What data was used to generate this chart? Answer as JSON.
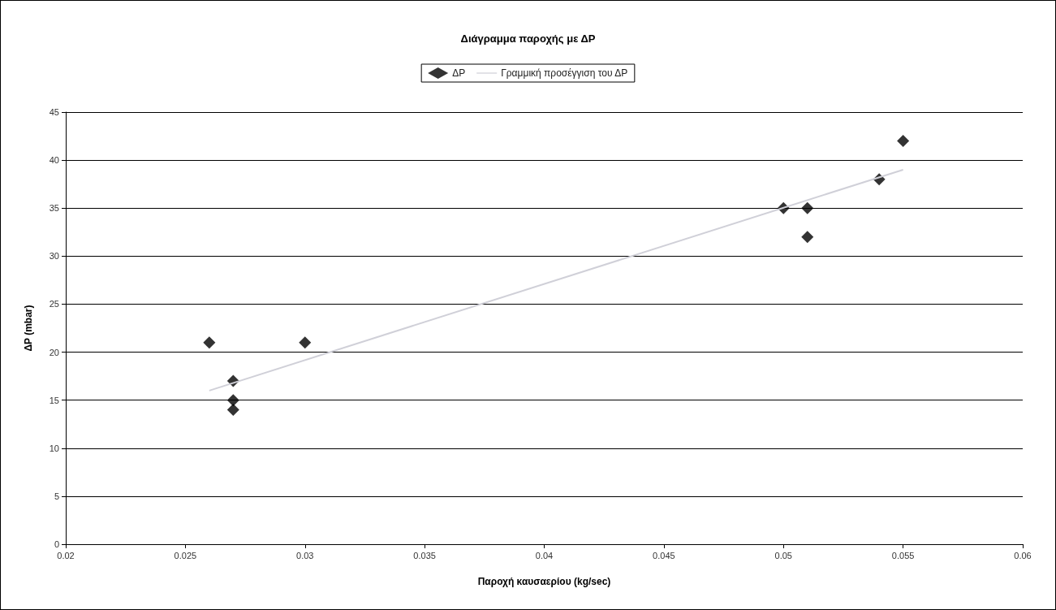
{
  "chart_data": {
    "type": "scatter",
    "title": "Διάγραμμα παροχής με ΔP",
    "xlabel": "Παροχή καυσαερίου (kg/sec)",
    "ylabel": "ΔP (mbar)",
    "series": [
      {
        "name": "ΔP",
        "color": "#000000",
        "marker": "diamond",
        "x": [
          0.026,
          0.027,
          0.027,
          0.027,
          0.03,
          0.05,
          0.051,
          0.051,
          0.054,
          0.055
        ],
        "values": [
          21,
          17,
          15,
          14,
          21,
          35,
          35,
          32,
          38,
          42
        ]
      },
      {
        "name": "Γραμμική προσέγγιση του ΔP",
        "type": "line",
        "color": "#d0d0d8",
        "marker": "none",
        "x": [
          0.026,
          0.055
        ],
        "values": [
          16,
          39
        ]
      }
    ],
    "xlim": [
      0.02,
      0.06
    ],
    "xticks": [
      0.02,
      0.025,
      0.03,
      0.035,
      0.04,
      0.045,
      0.05,
      0.055,
      0.06
    ],
    "ylim": [
      0,
      45
    ],
    "yticks": [
      0,
      5,
      10,
      15,
      20,
      25,
      30,
      35,
      40,
      45
    ],
    "grid": "y",
    "legend": "top"
  }
}
